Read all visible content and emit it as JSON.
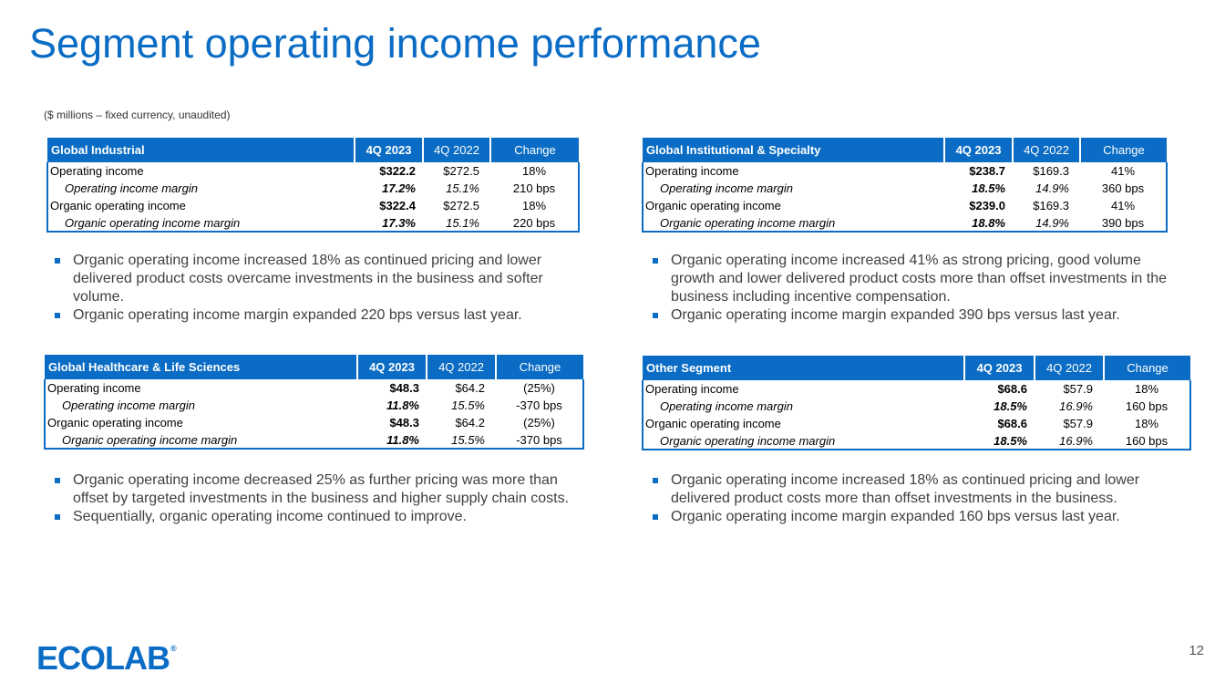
{
  "title": "Segment operating income performance",
  "subtitle": "($ millions – fixed currency, unaudited)",
  "colors": {
    "brand_blue": "#0a6cc4",
    "bullet_text": "#404040"
  },
  "tables": {
    "industrial": {
      "headers": [
        "Global Industrial",
        "4Q 2023",
        "4Q 2022",
        "Change"
      ],
      "rows": [
        [
          "Operating income",
          "$322.2",
          "$272.5",
          "18%"
        ],
        [
          "Operating income margin",
          "17.2%",
          "15.1%",
          "210 bps"
        ],
        [
          "Organic operating income",
          "$322.4",
          "$272.5",
          "18%"
        ],
        [
          "Organic operating income margin",
          "17.3%",
          "15.1%",
          "220 bps"
        ]
      ]
    },
    "institutional": {
      "headers": [
        "Global Institutional & Specialty",
        "4Q 2023",
        "4Q 2022",
        "Change"
      ],
      "rows": [
        [
          "Operating income",
          "$238.7",
          "$169.3",
          "41%"
        ],
        [
          "Operating income margin",
          "18.5%",
          "14.9%",
          "360 bps"
        ],
        [
          "Organic operating income",
          "$239.0",
          "$169.3",
          "41%"
        ],
        [
          "Organic operating income margin",
          "18.8%",
          "14.9%",
          "390 bps"
        ]
      ]
    },
    "healthcare": {
      "headers": [
        "Global Healthcare & Life Sciences",
        "4Q 2023",
        "4Q 2022",
        "Change"
      ],
      "rows": [
        [
          "Operating income",
          "$48.3",
          "$64.2",
          "(25%)"
        ],
        [
          "Operating income margin",
          "11.8%",
          "15.5%",
          "-370 bps"
        ],
        [
          "Organic operating income",
          "$48.3",
          "$64.2",
          "(25%)"
        ],
        [
          "Organic operating income margin",
          "11.8%",
          "15.5%",
          "-370 bps"
        ]
      ]
    },
    "other": {
      "headers": [
        "Other Segment",
        "4Q 2023",
        "4Q 2022",
        "Change"
      ],
      "rows": [
        [
          "Operating income",
          "$68.6",
          "$57.9",
          "18%"
        ],
        [
          "Operating income margin",
          "18.5%",
          "16.9%",
          "160 bps"
        ],
        [
          "Organic operating income",
          "$68.6",
          "$57.9",
          "18%"
        ],
        [
          "Organic operating income margin",
          "18.5%",
          "16.9%",
          "160 bps"
        ]
      ]
    }
  },
  "bullets": {
    "industrial": [
      "Organic operating income increased 18% as continued pricing and lower delivered product costs overcame investments in the business and softer volume.",
      "Organic operating income margin expanded 220 bps versus last year."
    ],
    "institutional": [
      "Organic operating income increased 41% as strong pricing, good volume growth and lower delivered product costs more than offset investments in the business including incentive compensation.",
      "Organic operating income margin expanded 390 bps versus last year."
    ],
    "healthcare": [
      "Organic operating income decreased 25% as further pricing was more than offset by targeted investments in the business and higher supply chain costs.",
      "Sequentially, organic operating income continued to improve."
    ],
    "other": [
      "Organic operating income increased 18% as continued pricing and lower delivered product costs more than offset investments in the business.",
      "Organic operating income margin expanded 160 bps versus last year."
    ]
  },
  "logo": {
    "text": "ECOLAB",
    "registered": "®"
  },
  "page_number": "12"
}
